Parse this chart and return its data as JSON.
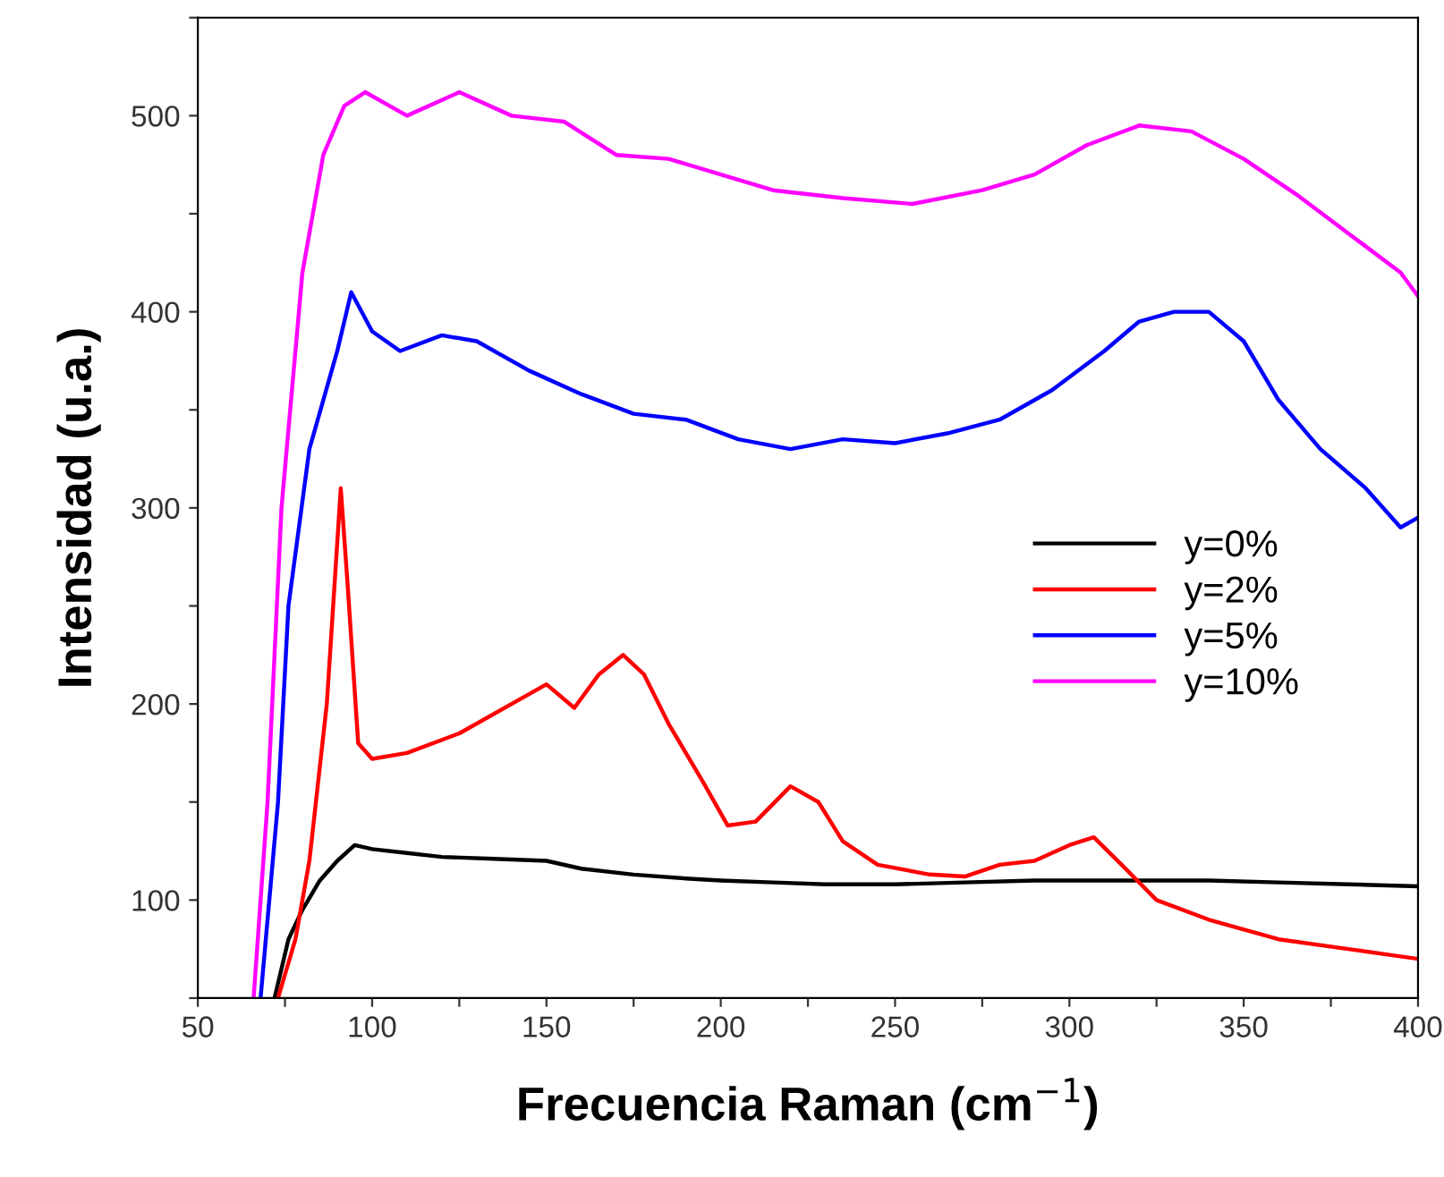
{
  "chart_data": {
    "type": "line",
    "xlabel": "Frecuencia Raman (cm$^{−1}$)",
    "ylabel": "Intensidad (u.a.)",
    "xlim": [
      50,
      400
    ],
    "ylim": [
      50,
      550
    ],
    "xticks": [
      50,
      {
        "value": 75,
        "label": null
      },
      100,
      {
        "value": 125,
        "label": null
      },
      150,
      {
        "value": 175,
        "label": null
      },
      200,
      {
        "value": 225,
        "label": null
      },
      250,
      {
        "value": 275,
        "label": null
      },
      300,
      {
        "value": 325,
        "label": null
      },
      350,
      {
        "value": 375,
        "label": null
      },
      400
    ],
    "yticks": [
      {
        "value": 50,
        "label": null
      },
      100,
      {
        "value": 150,
        "label": null
      },
      200,
      {
        "value": 250,
        "label": null
      },
      300,
      {
        "value": 350,
        "label": null
      },
      400,
      {
        "value": 450,
        "label": null
      },
      500,
      {
        "value": 550,
        "label": null
      }
    ],
    "legend": "center right",
    "grid": false,
    "marker": "none",
    "line_style": "solid",
    "series": [
      {
        "name": "y=0%",
        "color": "#000000",
        "x": [
          72,
          76,
          80,
          85,
          90,
          95,
          100,
          110,
          120,
          135,
          150,
          160,
          175,
          190,
          200,
          215,
          230,
          250,
          270,
          290,
          300,
          320,
          340,
          360,
          380,
          400
        ],
        "values": [
          50,
          80,
          95,
          110,
          120,
          128,
          126,
          124,
          122,
          121,
          120,
          116,
          113,
          111,
          110,
          109,
          108,
          108,
          109,
          110,
          110,
          110,
          110,
          109,
          108,
          107
        ]
      },
      {
        "name": "y=2%",
        "color": "#ff0000",
        "x": [
          73,
          78,
          82,
          87,
          91,
          93,
          96,
          100,
          110,
          125,
          145,
          150,
          158,
          165,
          172,
          178,
          185,
          195,
          202,
          210,
          220,
          228,
          235,
          245,
          260,
          270,
          280,
          290,
          300,
          307,
          315,
          325,
          340,
          360,
          380,
          400
        ],
        "values": [
          50,
          80,
          120,
          200,
          310,
          260,
          180,
          172,
          175,
          185,
          205,
          210,
          198,
          215,
          225,
          215,
          190,
          160,
          138,
          140,
          158,
          150,
          130,
          118,
          113,
          112,
          118,
          120,
          128,
          132,
          118,
          100,
          90,
          80,
          75,
          70
        ]
      },
      {
        "name": "y=5%",
        "color": "#0000ff",
        "x": [
          68,
          73,
          76,
          82,
          90,
          94,
          100,
          108,
          120,
          130,
          145,
          160,
          175,
          190,
          205,
          220,
          235,
          250,
          265,
          280,
          295,
          310,
          320,
          330,
          340,
          350,
          360,
          372,
          385,
          395,
          400
        ],
        "values": [
          50,
          150,
          250,
          330,
          380,
          410,
          390,
          380,
          388,
          385,
          370,
          358,
          348,
          345,
          335,
          330,
          335,
          333,
          338,
          345,
          360,
          380,
          395,
          400,
          400,
          385,
          355,
          330,
          310,
          290,
          295
        ]
      },
      {
        "name": "y=10%",
        "color": "#ff00ff",
        "x": [
          66,
          70,
          74,
          80,
          86,
          92,
          98,
          110,
          125,
          140,
          155,
          170,
          185,
          200,
          215,
          235,
          255,
          275,
          290,
          305,
          320,
          335,
          350,
          365,
          380,
          395,
          400
        ],
        "values": [
          50,
          150,
          300,
          420,
          480,
          505,
          512,
          500,
          512,
          500,
          497,
          480,
          478,
          470,
          462,
          458,
          455,
          462,
          470,
          485,
          495,
          492,
          478,
          460,
          440,
          420,
          408
        ]
      }
    ]
  }
}
